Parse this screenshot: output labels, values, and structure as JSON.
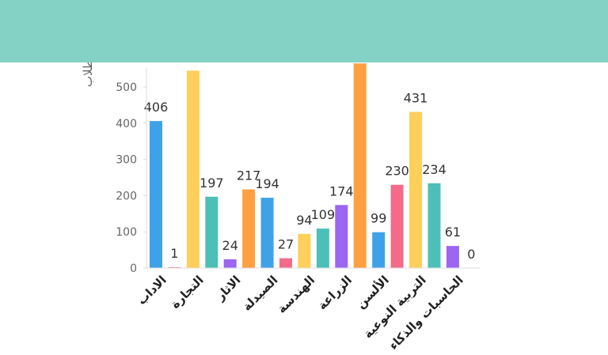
{
  "theme": {
    "band_color": "#84D1C6",
    "axis_color": "#dddddd"
  },
  "chart_data": {
    "type": "bar",
    "ylabel": "الطلاب",
    "ylim": [
      0,
      560
    ],
    "yticks": [
      0,
      100,
      200,
      300,
      400,
      500
    ],
    "grid": false,
    "groups": [
      {
        "category": "الاداب",
        "bars": [
          {
            "value": 406,
            "label": "406",
            "color": "#3FA2E8"
          },
          {
            "value": 1,
            "label": "1",
            "color": "#F46B8A"
          }
        ]
      },
      {
        "category": "التجارة",
        "bars": [
          {
            "value": 545,
            "label": "",
            "color": "#FFCF5C"
          },
          {
            "value": 197,
            "label": "197",
            "color": "#4CC0B6"
          }
        ]
      },
      {
        "category": "الاثار",
        "bars": [
          {
            "value": 24,
            "label": "24",
            "color": "#9B66F2"
          },
          {
            "value": 217,
            "label": "217",
            "color": "#FFA040"
          }
        ]
      },
      {
        "category": "الصيدلة",
        "bars": [
          {
            "value": 194,
            "label": "194",
            "color": "#3FA2E8"
          },
          {
            "value": 27,
            "label": "27",
            "color": "#F46B8A"
          }
        ]
      },
      {
        "category": "الهندسة",
        "bars": [
          {
            "value": 94,
            "label": "94",
            "color": "#FFCF5C"
          },
          {
            "value": 109,
            "label": "109",
            "color": "#4CC0B6"
          }
        ]
      },
      {
        "category": "الزراعة",
        "bars": [
          {
            "value": 174,
            "label": "174",
            "color": "#9B66F2"
          },
          {
            "value": 565,
            "label": "",
            "color": "#FFA040"
          }
        ]
      },
      {
        "category": "الألسن",
        "bars": [
          {
            "value": 99,
            "label": "99",
            "color": "#3FA2E8"
          },
          {
            "value": 230,
            "label": "230",
            "color": "#F46B8A"
          }
        ]
      },
      {
        "category": "التربية النوعية",
        "bars": [
          {
            "value": 431,
            "label": "431",
            "color": "#FFCF5C"
          },
          {
            "value": 234,
            "label": "234",
            "color": "#4CC0B6"
          }
        ]
      },
      {
        "category": "الحاسبات والذكاء",
        "bars": [
          {
            "value": 61,
            "label": "61",
            "color": "#9B66F2"
          },
          {
            "value": 0,
            "label": "0",
            "color": "#FFA040"
          }
        ]
      }
    ]
  }
}
